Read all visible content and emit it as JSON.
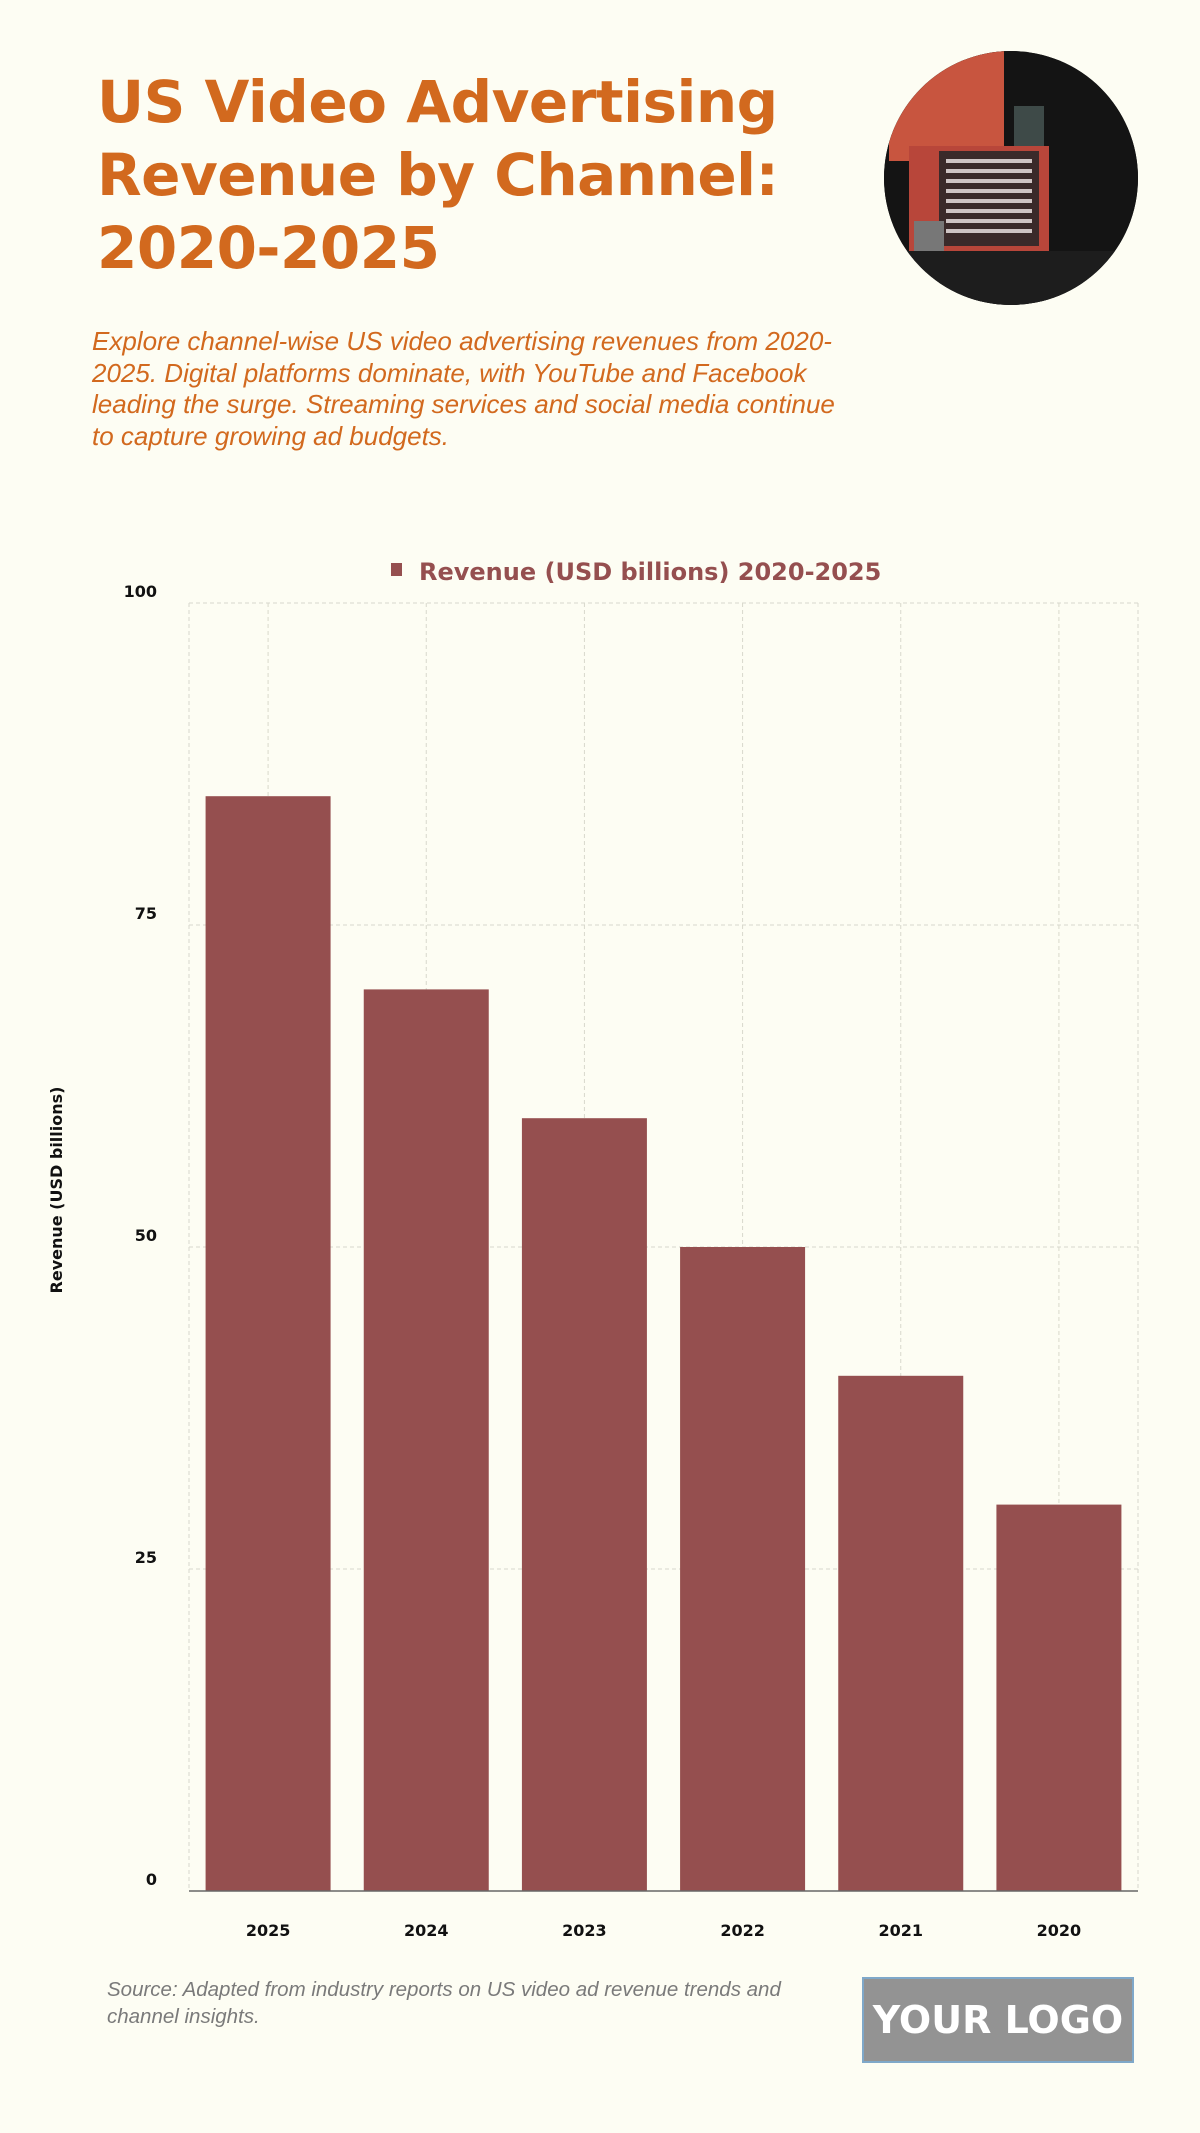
{
  "header": {
    "title": "US Video Advertising Revenue by Channel: 2020-2025",
    "subtitle": "Explore channel-wise US video advertising revenues from 2020-2025. Digital platforms dominate, with YouTube and Facebook leading the surge. Streaming services and social media continue to capture growing ad budgets."
  },
  "footer": {
    "source": "Source: Adapted from industry reports on US video ad revenue trends and channel insights.",
    "logo": "YOUR LOGO"
  },
  "colors": {
    "title": "#d2691e",
    "bar": "#954f4f",
    "background": "#fdfdf3"
  },
  "chart_data": {
    "type": "bar",
    "categories": [
      "2025",
      "2024",
      "2023",
      "2022",
      "2021",
      "2020"
    ],
    "series": [
      {
        "name": "Revenue (USD billions) 2020-2025",
        "values": [
          85,
          70,
          60,
          50,
          40,
          30
        ]
      }
    ],
    "ylabel": "Revenue (USD billions)",
    "xlabel": "",
    "ylim": [
      0,
      100
    ],
    "yticks": [
      0,
      25,
      50,
      75,
      100
    ],
    "grid": true,
    "legend": "top-center"
  }
}
